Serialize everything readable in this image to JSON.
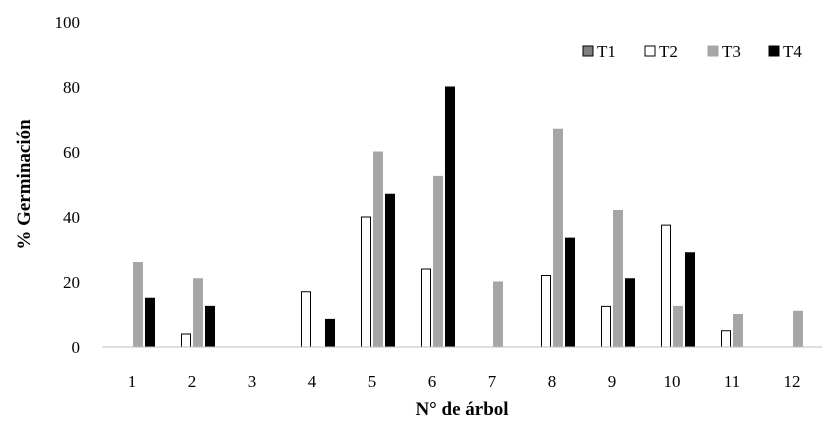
{
  "chart_data": {
    "type": "bar",
    "xlabel": "N° de árbol",
    "ylabel": "% Germinación",
    "ylim": [
      0,
      100
    ],
    "yticks": [
      0,
      20,
      40,
      60,
      80,
      100
    ],
    "grid": false,
    "legend_position": "top-right",
    "categories": [
      "1",
      "2",
      "3",
      "4",
      "5",
      "6",
      "7",
      "8",
      "9",
      "10",
      "11",
      "12"
    ],
    "series": [
      {
        "name": "T1",
        "color": "#808080",
        "border": "#000000",
        "values": [
          0,
          0,
          0,
          0,
          0,
          0,
          0,
          0,
          0,
          0,
          0,
          0
        ]
      },
      {
        "name": "T2",
        "color": "#ffffff",
        "border": "#000000",
        "values": [
          0,
          4,
          0,
          17,
          40,
          24,
          0,
          22,
          12.5,
          37.5,
          5,
          0
        ]
      },
      {
        "name": "T3",
        "color": "#a6a6a6",
        "border": "#a6a6a6",
        "values": [
          26,
          21,
          0,
          0,
          60,
          52.5,
          20,
          67,
          42,
          12.5,
          10,
          11
        ]
      },
      {
        "name": "T4",
        "color": "#000000",
        "border": "#000000",
        "values": [
          15,
          12.5,
          0,
          8.5,
          47,
          80,
          0,
          33.5,
          21,
          29,
          0,
          0
        ]
      }
    ]
  }
}
